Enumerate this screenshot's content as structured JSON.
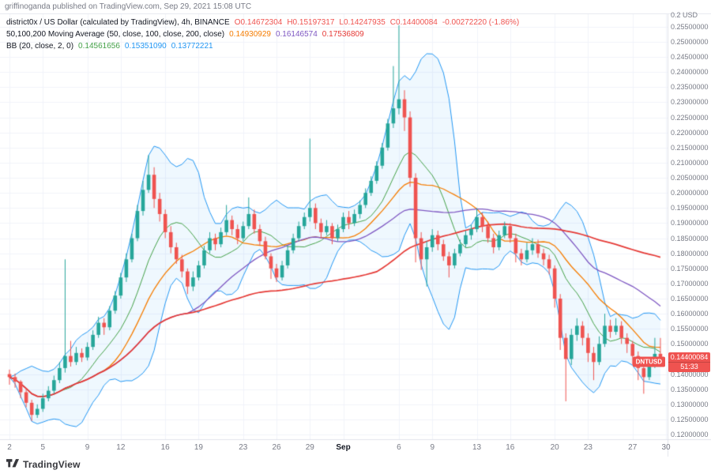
{
  "attribution": "griffinoganda published on TradingView.com, Sep 29, 2021 15:08 UTC",
  "legend": {
    "title": "district0x / US Dollar (calculated by TradingView), 4h, BINANCE",
    "ohlc": [
      "O0.14672304",
      "H0.15197317",
      "L0.14247935",
      "C0.14400084",
      "-0.00272220 (-1.86%)"
    ],
    "ma": {
      "label": "50,100,200 Moving Average (50, close, 100, close, 200, close)",
      "values": [
        "0.14930929",
        "0.16146574",
        "0.17536809"
      ]
    },
    "bb": {
      "label": "BB (20, close, 2, 0)",
      "values": [
        "0.14561656",
        "0.15351090",
        "0.13772221"
      ]
    }
  },
  "price_axis": {
    "unit_label": "0.2 USD",
    "labels": [
      "0.25500000",
      "0.25000000",
      "0.24500000",
      "0.24000000",
      "0.23500000",
      "0.23000000",
      "0.22500000",
      "0.22000000",
      "0.21500000",
      "0.21000000",
      "0.20500000",
      "0.20000000",
      "0.19500000",
      "0.19000000",
      "0.18500000",
      "0.18000000",
      "0.17500000",
      "0.17000000",
      "0.16500000",
      "0.16000000",
      "0.15500000",
      "0.15000000",
      "0.14500000",
      "0.14000000",
      "0.13500000",
      "0.13000000",
      "0.12500000",
      "0.12000000"
    ]
  },
  "time_axis": {
    "ticks": [
      {
        "label": "2",
        "day": 0
      },
      {
        "label": "5",
        "day": 3
      },
      {
        "label": "9",
        "day": 7
      },
      {
        "label": "12",
        "day": 10
      },
      {
        "label": "16",
        "day": 14
      },
      {
        "label": "19",
        "day": 17
      },
      {
        "label": "23",
        "day": 21
      },
      {
        "label": "26",
        "day": 24
      },
      {
        "label": "29",
        "day": 27
      },
      {
        "label": "Sep",
        "day": 30,
        "major": true
      },
      {
        "label": "6",
        "day": 35
      },
      {
        "label": "9",
        "day": 38
      },
      {
        "label": "13",
        "day": 42
      },
      {
        "label": "16",
        "day": 45
      },
      {
        "label": "20",
        "day": 49
      },
      {
        "label": "23",
        "day": 52
      },
      {
        "label": "27",
        "day": 56
      },
      {
        "label": "30",
        "day": 59
      }
    ]
  },
  "badge": {
    "symbol": "DNTUSD",
    "price": "0.14400084",
    "countdown": "51:33",
    "value": 0.14400084
  },
  "footer": {
    "brand": "TradingView"
  },
  "colors": {
    "up": "#26a69a",
    "down": "#ef5350",
    "bb_band": "#2196f3",
    "bb_fill": "rgba(33,150,243,0.07)",
    "bb_basis": "#43a047",
    "ma50": "#f57c00",
    "ma100": "#7e57c2",
    "ma200": "#e53935",
    "grid": "#f0f3fa",
    "axis_text": "#787b86",
    "badge_bg": "#ef5350",
    "separator": "#e0e3eb"
  },
  "chart_data": {
    "type": "candlestick",
    "title": "district0x / US Dollar",
    "symbol": "DNTUSD",
    "exchange": "BINANCE",
    "interval": "4h",
    "date_range": [
      "Aug 2",
      "Sep 30"
    ],
    "y_axis": {
      "min": 0.12,
      "max": 0.2555,
      "step": 0.005,
      "unit": "USD"
    },
    "grid": true,
    "ohlc_last": {
      "open": 0.14672304,
      "high": 0.15197317,
      "low": 0.14247935,
      "close": 0.14400084,
      "change": -0.0027222,
      "change_pct": -1.86
    },
    "indicators": {
      "moving_averages": {
        "settings": "50, close, 100, close, 200, close",
        "last_values": {
          "ma50": 0.14930929,
          "ma100": 0.16146574,
          "ma200": 0.17536809
        }
      },
      "bollinger_bands": {
        "settings": "20, close, 2, 0",
        "last_values": {
          "basis": 0.14561656,
          "upper": 0.1535109,
          "lower": 0.13772221
        }
      }
    },
    "candles": [
      [
        0.14,
        0.1415,
        0.1365,
        0.139
      ],
      [
        0.139,
        0.1402,
        0.1355,
        0.1375
      ],
      [
        0.1375,
        0.138,
        0.132,
        0.134
      ],
      [
        0.134,
        0.1352,
        0.129,
        0.1305
      ],
      [
        0.1305,
        0.1315,
        0.1245,
        0.1265
      ],
      [
        0.1265,
        0.13,
        0.1255,
        0.1285
      ],
      [
        0.1285,
        0.1335,
        0.1275,
        0.132
      ],
      [
        0.132,
        0.136,
        0.131,
        0.1345
      ],
      [
        0.1345,
        0.1395,
        0.1335,
        0.138
      ],
      [
        0.138,
        0.144,
        0.137,
        0.142
      ],
      [
        0.142,
        0.178,
        0.1405,
        0.146
      ],
      [
        0.146,
        0.151,
        0.1425,
        0.144
      ],
      [
        0.144,
        0.149,
        0.143,
        0.147
      ],
      [
        0.147,
        0.1485,
        0.144,
        0.1455
      ],
      [
        0.1455,
        0.1505,
        0.1445,
        0.149
      ],
      [
        0.149,
        0.1545,
        0.148,
        0.153
      ],
      [
        0.153,
        0.159,
        0.152,
        0.157
      ],
      [
        0.157,
        0.1585,
        0.153,
        0.1555
      ],
      [
        0.1555,
        0.1625,
        0.1545,
        0.161
      ],
      [
        0.161,
        0.1675,
        0.16,
        0.166
      ],
      [
        0.166,
        0.1735,
        0.165,
        0.172
      ],
      [
        0.172,
        0.18,
        0.1705,
        0.178
      ],
      [
        0.178,
        0.1865,
        0.177,
        0.185
      ],
      [
        0.185,
        0.196,
        0.184,
        0.194
      ],
      [
        0.194,
        0.204,
        0.1925,
        0.201
      ],
      [
        0.201,
        0.2125,
        0.2,
        0.206
      ],
      [
        0.206,
        0.2085,
        0.195,
        0.198
      ],
      [
        0.198,
        0.2,
        0.1905,
        0.193
      ],
      [
        0.193,
        0.1945,
        0.185,
        0.187
      ],
      [
        0.187,
        0.189,
        0.18,
        0.182
      ],
      [
        0.182,
        0.1835,
        0.1765,
        0.178
      ],
      [
        0.178,
        0.1795,
        0.172,
        0.174
      ],
      [
        0.174,
        0.175,
        0.1665,
        0.169
      ],
      [
        0.169,
        0.174,
        0.1675,
        0.172
      ],
      [
        0.172,
        0.1775,
        0.171,
        0.176
      ],
      [
        0.176,
        0.1825,
        0.175,
        0.181
      ],
      [
        0.181,
        0.187,
        0.18,
        0.185
      ],
      [
        0.185,
        0.1865,
        0.181,
        0.183
      ],
      [
        0.183,
        0.1885,
        0.182,
        0.187
      ],
      [
        0.187,
        0.196,
        0.186,
        0.191
      ],
      [
        0.191,
        0.1925,
        0.186,
        0.188
      ],
      [
        0.188,
        0.1895,
        0.183,
        0.185
      ],
      [
        0.185,
        0.1905,
        0.184,
        0.189
      ],
      [
        0.189,
        0.1985,
        0.188,
        0.193
      ],
      [
        0.193,
        0.1945,
        0.1865,
        0.188
      ],
      [
        0.188,
        0.1895,
        0.1825,
        0.184
      ],
      [
        0.184,
        0.1855,
        0.178,
        0.179
      ],
      [
        0.179,
        0.18,
        0.1715,
        0.175
      ],
      [
        0.175,
        0.1765,
        0.1705,
        0.172
      ],
      [
        0.172,
        0.1775,
        0.171,
        0.176
      ],
      [
        0.176,
        0.1825,
        0.175,
        0.181
      ],
      [
        0.181,
        0.1865,
        0.18,
        0.185
      ],
      [
        0.185,
        0.1905,
        0.184,
        0.189
      ],
      [
        0.189,
        0.1935,
        0.188,
        0.192
      ],
      [
        0.192,
        0.218,
        0.1905,
        0.195
      ],
      [
        0.195,
        0.1965,
        0.188,
        0.19
      ],
      [
        0.19,
        0.1915,
        0.185,
        0.187
      ],
      [
        0.187,
        0.191,
        0.186,
        0.189
      ],
      [
        0.189,
        0.19,
        0.183,
        0.185
      ],
      [
        0.185,
        0.1895,
        0.184,
        0.188
      ],
      [
        0.188,
        0.1935,
        0.187,
        0.192
      ],
      [
        0.192,
        0.194,
        0.188,
        0.19
      ],
      [
        0.19,
        0.1945,
        0.189,
        0.193
      ],
      [
        0.193,
        0.1975,
        0.1915,
        0.196
      ],
      [
        0.196,
        0.2015,
        0.195,
        0.2
      ],
      [
        0.2,
        0.2055,
        0.199,
        0.204
      ],
      [
        0.204,
        0.2105,
        0.203,
        0.209
      ],
      [
        0.209,
        0.2165,
        0.208,
        0.215
      ],
      [
        0.215,
        0.2245,
        0.214,
        0.223
      ],
      [
        0.223,
        0.242,
        0.2215,
        0.228
      ],
      [
        0.228,
        0.2555,
        0.226,
        0.231
      ],
      [
        0.231,
        0.234,
        0.2205,
        0.225
      ],
      [
        0.225,
        0.227,
        0.202,
        0.205
      ],
      [
        0.205,
        0.2065,
        0.177,
        0.185
      ],
      [
        0.185,
        0.187,
        0.1745,
        0.178
      ],
      [
        0.178,
        0.184,
        0.169,
        0.182
      ],
      [
        0.182,
        0.188,
        0.1805,
        0.186
      ],
      [
        0.186,
        0.1875,
        0.181,
        0.183
      ],
      [
        0.183,
        0.1845,
        0.1775,
        0.179
      ],
      [
        0.179,
        0.1805,
        0.172,
        0.176
      ],
      [
        0.176,
        0.1815,
        0.175,
        0.18
      ],
      [
        0.18,
        0.1845,
        0.179,
        0.183
      ],
      [
        0.183,
        0.1875,
        0.182,
        0.186
      ],
      [
        0.186,
        0.1895,
        0.1845,
        0.188
      ],
      [
        0.188,
        0.195,
        0.187,
        0.192
      ],
      [
        0.192,
        0.1935,
        0.187,
        0.189
      ],
      [
        0.189,
        0.1905,
        0.1835,
        0.185
      ],
      [
        0.185,
        0.1865,
        0.18,
        0.182
      ],
      [
        0.182,
        0.1875,
        0.181,
        0.186
      ],
      [
        0.186,
        0.1905,
        0.185,
        0.189
      ],
      [
        0.189,
        0.19,
        0.1835,
        0.185
      ],
      [
        0.185,
        0.1865,
        0.177,
        0.18
      ],
      [
        0.18,
        0.1815,
        0.176,
        0.178
      ],
      [
        0.178,
        0.1835,
        0.177,
        0.181
      ],
      [
        0.181,
        0.185,
        0.1795,
        0.183
      ],
      [
        0.183,
        0.1845,
        0.1785,
        0.18
      ],
      [
        0.18,
        0.1815,
        0.176,
        0.178
      ],
      [
        0.178,
        0.1795,
        0.173,
        0.175
      ],
      [
        0.175,
        0.176,
        0.162,
        0.165
      ],
      [
        0.165,
        0.1665,
        0.148,
        0.152
      ],
      [
        0.152,
        0.1535,
        0.131,
        0.145
      ],
      [
        0.145,
        0.155,
        0.143,
        0.153
      ],
      [
        0.153,
        0.1585,
        0.151,
        0.156
      ],
      [
        0.156,
        0.1575,
        0.1495,
        0.152
      ],
      [
        0.152,
        0.1535,
        0.144,
        0.147
      ],
      [
        0.147,
        0.149,
        0.138,
        0.144
      ],
      [
        0.144,
        0.1525,
        0.143,
        0.15
      ],
      [
        0.15,
        0.16,
        0.149,
        0.156
      ],
      [
        0.156,
        0.158,
        0.152,
        0.154
      ],
      [
        0.154,
        0.1585,
        0.153,
        0.156
      ],
      [
        0.156,
        0.1575,
        0.15,
        0.152
      ],
      [
        0.152,
        0.1535,
        0.147,
        0.15
      ],
      [
        0.15,
        0.151,
        0.143,
        0.146
      ],
      [
        0.146,
        0.1475,
        0.138,
        0.142
      ],
      [
        0.142,
        0.143,
        0.1335,
        0.139
      ],
      [
        0.139,
        0.145,
        0.138,
        0.143
      ],
      [
        0.143,
        0.152,
        0.142,
        0.1467
      ],
      [
        0.14672304,
        0.15197317,
        0.14247935,
        0.14400084
      ]
    ]
  }
}
